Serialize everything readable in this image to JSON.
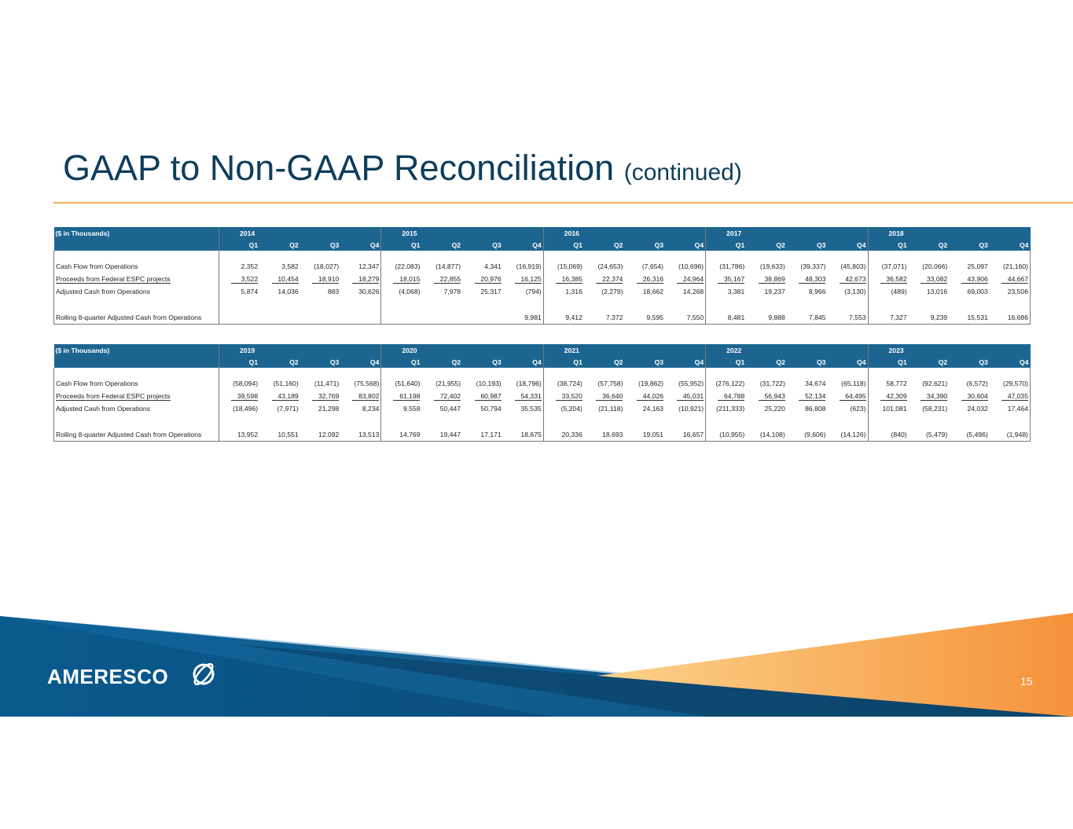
{
  "title": {
    "main": "GAAP to Non-GAAP Reconciliation",
    "sub": "(continued)"
  },
  "tables": [
    {
      "header_label": "($ in Thousands)",
      "years": [
        "2014",
        "2015",
        "2016",
        "2017",
        "2018"
      ],
      "quarters": [
        "Q1",
        "Q2",
        "Q3",
        "Q4",
        "Q1",
        "Q2",
        "Q3",
        "Q4",
        "Q1",
        "Q2",
        "Q3",
        "Q4",
        "Q1",
        "Q2",
        "Q3",
        "Q4",
        "Q1",
        "Q2",
        "Q3",
        "Q4"
      ],
      "rows": [
        {
          "label": "Cash Flow from Operations",
          "values": [
            "2,352",
            "3,582",
            "(18,027)",
            "12,347",
            "(22,083)",
            "(14,877)",
            "4,341",
            "(16,919)",
            "(15,069)",
            "(24,653)",
            "(7,654)",
            "(10,696)",
            "(31,786)",
            "(19,633)",
            "(39,337)",
            "(45,803)",
            "(37,071)",
            "(20,066)",
            "25,097",
            "(21,160)"
          ]
        },
        {
          "label": "Proceeds from Federal ESPC projects",
          "values": [
            "3,522",
            "10,454",
            "18,910",
            "18,279",
            "18,015",
            "22,855",
            "20,976",
            "16,125",
            "16,385",
            "22,374",
            "26,316",
            "24,964",
            "35,167",
            "38,869",
            "48,303",
            "42,673",
            "36,582",
            "33,082",
            "43,906",
            "44,667"
          ]
        },
        {
          "label": "Adjusted Cash from Operations",
          "values": [
            "5,874",
            "14,036",
            "883",
            "30,626",
            "(4,068)",
            "7,978",
            "25,317",
            "(794)",
            "1,316",
            "(2,279)",
            "18,662",
            "14,268",
            "3,381",
            "19,237",
            "8,966",
            "(3,130)",
            "(489)",
            "13,016",
            "69,003",
            "23,506"
          ]
        },
        {
          "label": "Rolling 8-quarter Adjusted Cash from Operations",
          "values": [
            "",
            "",
            "",
            "",
            "",
            "",
            "",
            "9,981",
            "9,412",
            "7,372",
            "9,595",
            "7,550",
            "8,481",
            "9,888",
            "7,845",
            "7,553",
            "7,327",
            "9,239",
            "15,531",
            "16,686"
          ]
        }
      ]
    },
    {
      "header_label": "($ in Thousands)",
      "years": [
        "2019",
        "2020",
        "2021",
        "2022",
        "2023"
      ],
      "quarters": [
        "Q1",
        "Q2",
        "Q3",
        "Q4",
        "Q1",
        "Q2",
        "Q3",
        "Q4",
        "Q1",
        "Q2",
        "Q3",
        "Q4",
        "Q1",
        "Q2",
        "Q3",
        "Q4",
        "Q1",
        "Q2",
        "Q3",
        "Q4"
      ],
      "rows": [
        {
          "label": "Cash Flow from Operations",
          "values": [
            "(58,094)",
            "(51,160)",
            "(11,471)",
            "(75,568)",
            "(51,640)",
            "(21,955)",
            "(10,193)",
            "(18,796)",
            "(38,724)",
            "(57,758)",
            "(19,862)",
            "(55,952)",
            "(276,122)",
            "(31,722)",
            "34,674",
            "(65,118)",
            "58,772",
            "(92,621)",
            "(6,572)",
            "(29,570)"
          ]
        },
        {
          "label": "Proceeds from Federal ESPC projects",
          "values": [
            "39,598",
            "43,189",
            "32,769",
            "83,802",
            "61,198",
            "72,402",
            "60,987",
            "54,331",
            "33,520",
            "36,640",
            "44,026",
            "45,031",
            "64,788",
            "56,943",
            "52,134",
            "64,495",
            "42,309",
            "34,390",
            "30,604",
            "47,035"
          ]
        },
        {
          "label": "Adjusted Cash from Operations",
          "values": [
            "(18,496)",
            "(7,971)",
            "21,298",
            "8,234",
            "9,558",
            "50,447",
            "50,794",
            "35,535",
            "(5,204)",
            "(21,118)",
            "24,163",
            "(10,921)",
            "(211,333)",
            "25,220",
            "86,808",
            "(623)",
            "101,081",
            "(58,231)",
            "24,032",
            "17,464"
          ]
        },
        {
          "label": "Rolling 8-quarter Adjusted Cash from Operations",
          "values": [
            "13,952",
            "10,551",
            "12,092",
            "13,513",
            "14,769",
            "19,447",
            "17,171",
            "18,675",
            "20,336",
            "18,693",
            "19,051",
            "16,657",
            "(10,955)",
            "(14,108)",
            "(9,606)",
            "(14,126)",
            "(840)",
            "(5,479)",
            "(5,496)",
            "(1,948)"
          ]
        }
      ]
    }
  ],
  "footer": {
    "logo": "AMERESCO",
    "page_number": "15"
  },
  "colors": {
    "title": "#0f3d5c",
    "header": "#1d6591",
    "rule": "#f5ad5c"
  }
}
